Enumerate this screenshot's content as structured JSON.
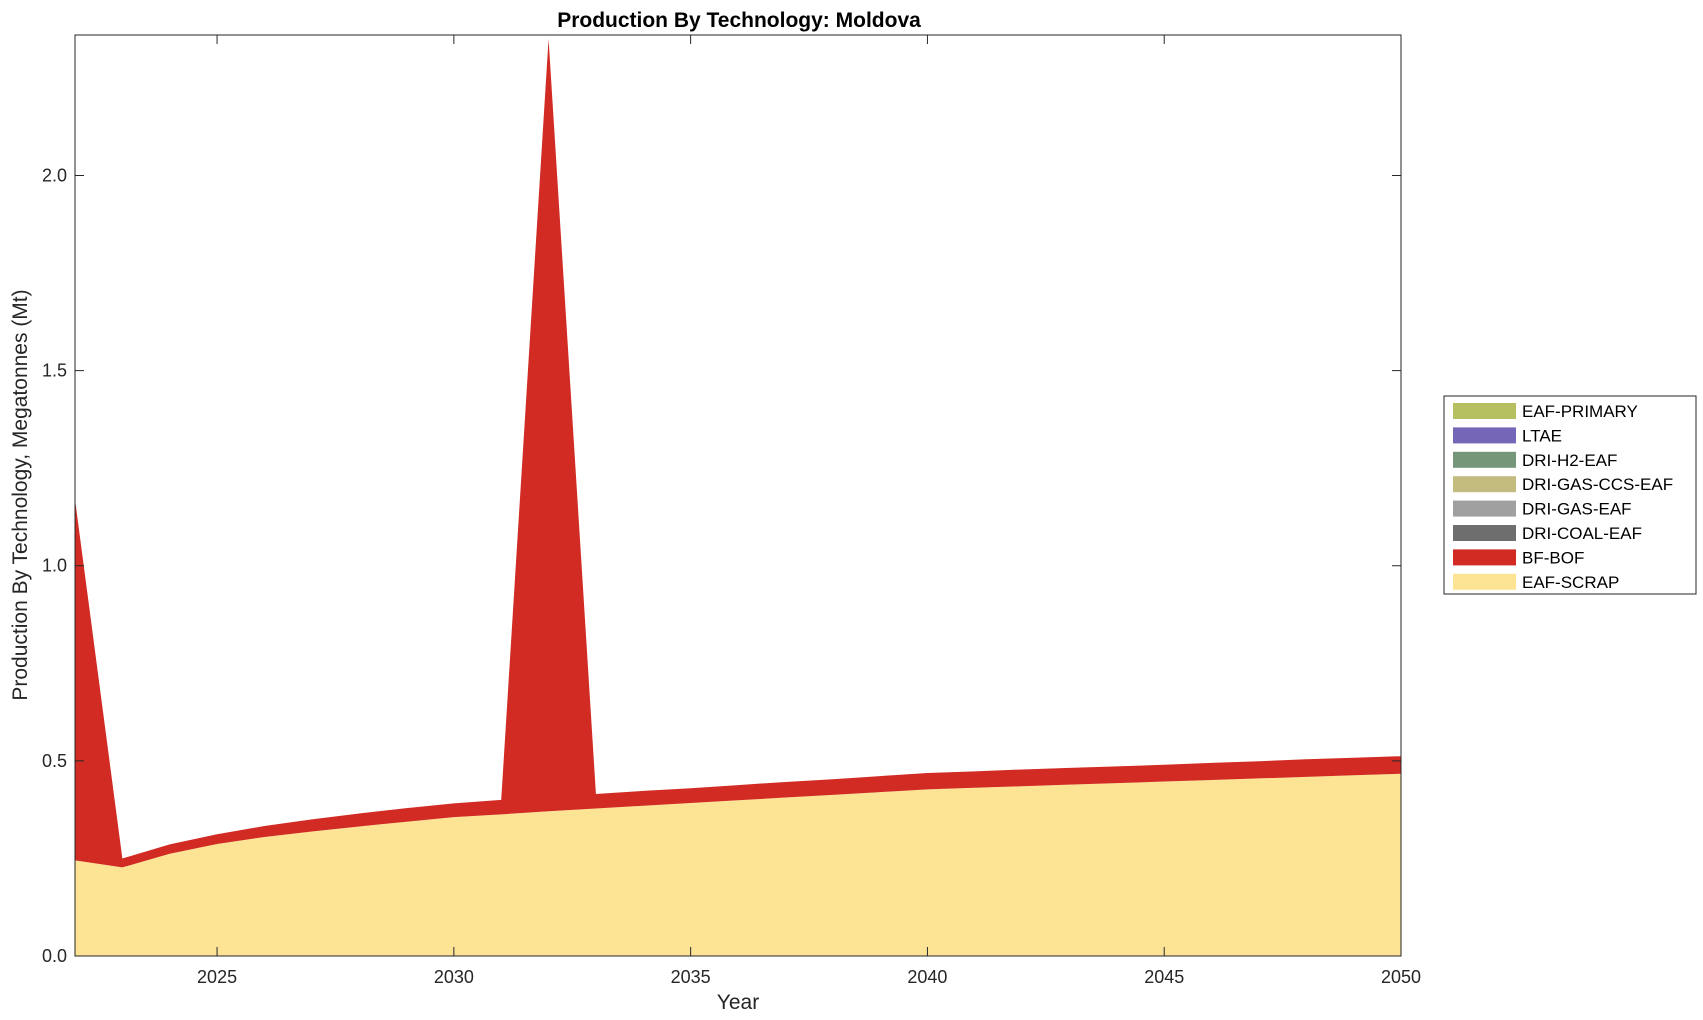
{
  "chart_data": {
    "type": "area",
    "title": "Production By Technology: Moldova",
    "xlabel": "Year",
    "ylabel": "Production By Technology, Megatonnes (Mt)",
    "xlim": [
      2022,
      2050
    ],
    "ylim": [
      0,
      2.36
    ],
    "xticks": [
      2025,
      2030,
      2035,
      2040,
      2045,
      2050
    ],
    "yticks": [
      0.0,
      0.5,
      1.0,
      1.5,
      2.0
    ],
    "ytick_labels": [
      "0.0",
      "0.5",
      "1.0",
      "1.5",
      "2.0"
    ],
    "stacked": true,
    "grid": false,
    "legend_position": "outside-right",
    "x": [
      2022,
      2023,
      2024,
      2025,
      2026,
      2027,
      2028,
      2029,
      2030,
      2031,
      2032,
      2033,
      2034,
      2035,
      2036,
      2037,
      2038,
      2039,
      2040,
      2041,
      2042,
      2043,
      2044,
      2045,
      2046,
      2047,
      2048,
      2049,
      2050
    ],
    "series": [
      {
        "name": "EAF-SCRAP",
        "color": "#FDE495",
        "values": [
          0.245,
          0.227,
          0.262,
          0.287,
          0.305,
          0.319,
          0.332,
          0.344,
          0.356,
          0.363,
          0.371,
          0.378,
          0.385,
          0.392,
          0.399,
          0.406,
          0.413,
          0.42,
          0.427,
          0.431,
          0.435,
          0.439,
          0.443,
          0.447,
          0.451,
          0.455,
          0.459,
          0.463,
          0.467
        ]
      },
      {
        "name": "BF-BOF",
        "color": "#D22B24",
        "values": [
          0.925,
          0.023,
          0.024,
          0.025,
          0.028,
          0.031,
          0.033,
          0.035,
          0.035,
          0.037,
          1.979,
          0.037,
          0.038,
          0.038,
          0.039,
          0.04,
          0.04,
          0.041,
          0.042,
          0.042,
          0.043,
          0.043,
          0.043,
          0.043,
          0.044,
          0.044,
          0.045,
          0.045,
          0.045
        ]
      },
      {
        "name": "DRI-COAL-EAF",
        "color": "#6E6E6E",
        "values": [
          0,
          0,
          0,
          0,
          0,
          0,
          0,
          0,
          0,
          0,
          0,
          0,
          0,
          0,
          0,
          0,
          0,
          0,
          0,
          0,
          0,
          0,
          0,
          0,
          0,
          0,
          0,
          0,
          0
        ]
      },
      {
        "name": "DRI-GAS-EAF",
        "color": "#A0A0A0",
        "values": [
          0,
          0,
          0,
          0,
          0,
          0,
          0,
          0,
          0,
          0,
          0,
          0,
          0,
          0,
          0,
          0,
          0,
          0,
          0,
          0,
          0,
          0,
          0,
          0,
          0,
          0,
          0,
          0,
          0
        ]
      },
      {
        "name": "DRI-GAS-CCS-EAF",
        "color": "#C4BB7F",
        "values": [
          0,
          0,
          0,
          0,
          0,
          0,
          0,
          0,
          0,
          0,
          0,
          0,
          0,
          0,
          0,
          0,
          0,
          0,
          0,
          0,
          0,
          0,
          0,
          0,
          0,
          0,
          0,
          0,
          0
        ]
      },
      {
        "name": "DRI-H2-EAF",
        "color": "#76967A",
        "values": [
          0,
          0,
          0,
          0,
          0,
          0,
          0,
          0,
          0,
          0,
          0,
          0,
          0,
          0,
          0,
          0,
          0,
          0,
          0,
          0,
          0,
          0,
          0,
          0,
          0,
          0,
          0,
          0,
          0
        ]
      },
      {
        "name": "LTAE",
        "color": "#7566B8",
        "values": [
          0,
          0,
          0,
          0,
          0,
          0,
          0,
          0,
          0,
          0,
          0,
          0,
          0,
          0,
          0,
          0,
          0,
          0,
          0,
          0,
          0,
          0,
          0,
          0,
          0,
          0,
          0,
          0,
          0
        ]
      },
      {
        "name": "EAF-PRIMARY",
        "color": "#B7C061",
        "values": [
          0,
          0,
          0,
          0,
          0,
          0,
          0,
          0,
          0,
          0,
          0,
          0,
          0,
          0,
          0,
          0,
          0,
          0,
          0,
          0,
          0,
          0,
          0,
          0,
          0,
          0,
          0,
          0,
          0
        ]
      }
    ],
    "legend_order": [
      "EAF-PRIMARY",
      "LTAE",
      "DRI-H2-EAF",
      "DRI-GAS-CCS-EAF",
      "DRI-GAS-EAF",
      "DRI-COAL-EAF",
      "BF-BOF",
      "EAF-SCRAP"
    ]
  }
}
